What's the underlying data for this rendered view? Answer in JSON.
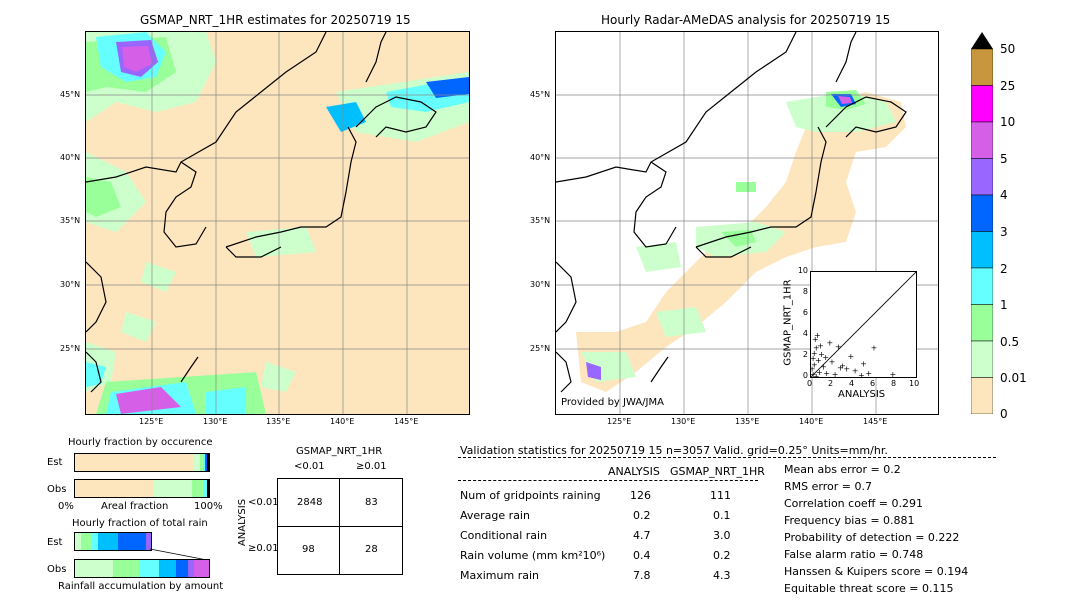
{
  "left_map": {
    "title": "GSMAP_NRT_1HR estimates for 20250719 15",
    "lat_labels": [
      "45°N",
      "40°N",
      "35°N",
      "30°N",
      "25°N"
    ],
    "lon_labels": [
      "125°E",
      "130°E",
      "135°E",
      "140°E",
      "145°E"
    ]
  },
  "right_map": {
    "title": "Hourly Radar-AMeDAS analysis for 20250719 15",
    "lat_labels": [
      "45°N",
      "40°N",
      "35°N",
      "30°N",
      "25°N"
    ],
    "lon_labels": [
      "125°E",
      "130°E",
      "135°E",
      "140°E",
      "145°E"
    ],
    "credit": "Provided by JWA/JMA"
  },
  "scatter": {
    "xlabel": "ANALYSIS",
    "ylabel": "GSMAP_NRT_1HR",
    "ticks": [
      "0",
      "2",
      "4",
      "6",
      "8",
      "10"
    ]
  },
  "colorbar": {
    "labels": [
      "50",
      "25",
      "10",
      "5",
      "4",
      "3",
      "2",
      "1",
      "0.5",
      "0.01",
      "0"
    ],
    "colors": [
      "#c8963c",
      "#ff00ff",
      "#d65fe8",
      "#9966ff",
      "#0066ff",
      "#00bfff",
      "#66ffff",
      "#99ff99",
      "#ccffcc",
      "#fde5bd"
    ]
  },
  "fraction_occurrence": {
    "title": "Hourly fraction by occurence",
    "est_label": "Est",
    "obs_label": "Obs",
    "axis_left": "0%",
    "axis_mid": "Areal fraction",
    "axis_right": "100%"
  },
  "fraction_total": {
    "title": "Hourly fraction of total rain",
    "est_label": "Est",
    "obs_label": "Obs",
    "axis_caption": "Rainfall accumulation by amount"
  },
  "contingency": {
    "title": "GSMAP_NRT_1HR",
    "col_lt": "<0.01",
    "col_ge": "≥0.01",
    "row_axis": "ANALYSIS",
    "row_lt": "<0.01",
    "row_ge": "≥0.01",
    "cells": [
      "2848",
      "83",
      "98",
      "28"
    ]
  },
  "validation": {
    "header": "Validation statistics for 20250719 15  n=3057 Valid. grid=0.25° Units=mm/hr.",
    "col_analysis": "ANALYSIS",
    "col_gsmap": "GSMAP_NRT_1HR",
    "rows": [
      {
        "label": "Num of gridpoints raining",
        "analysis": "126",
        "gsmap": "111"
      },
      {
        "label": "Average rain",
        "analysis": "0.2",
        "gsmap": "0.1"
      },
      {
        "label": "Conditional rain",
        "analysis": "4.7",
        "gsmap": "3.0"
      },
      {
        "label": "Rain volume (mm km²10⁶)",
        "analysis": "0.4",
        "gsmap": "0.2"
      },
      {
        "label": "Maximum rain",
        "analysis": "7.8",
        "gsmap": "4.3"
      }
    ],
    "scores": [
      "Mean abs error =    0.2",
      "RMS error =    0.7",
      "Correlation coeff =  0.291",
      "Frequency bias =  0.881",
      "Probability of detection =  0.222",
      "False alarm ratio =  0.748",
      "Hanssen & Kuipers score =  0.194",
      "Equitable threat score =  0.115"
    ]
  },
  "chart_data": [
    {
      "type": "table",
      "title": "GSMAP_NRT_1HR",
      "columns": [
        "<0.01",
        "≥0.01"
      ],
      "rows": [
        "<0.01",
        "≥0.01"
      ],
      "values": [
        [
          2848,
          83
        ],
        [
          98,
          28
        ]
      ]
    },
    {
      "type": "scatter",
      "xlabel": "ANALYSIS",
      "ylabel": "GSMAP_NRT_1HR",
      "xlim": [
        0,
        10
      ],
      "ylim": [
        0,
        10
      ],
      "points": [
        [
          0.2,
          0.3
        ],
        [
          0.3,
          1.2
        ],
        [
          0.5,
          2.8
        ],
        [
          0.4,
          3.6
        ],
        [
          0.6,
          4.0
        ],
        [
          0.2,
          1.8
        ],
        [
          0.8,
          0.5
        ],
        [
          1.0,
          2.2
        ],
        [
          1.2,
          1.0
        ],
        [
          1.5,
          0.4
        ],
        [
          2.0,
          1.5
        ],
        [
          2.3,
          0.3
        ],
        [
          2.6,
          2.9
        ],
        [
          3.0,
          1.1
        ],
        [
          3.4,
          0.8
        ],
        [
          3.8,
          2.0
        ],
        [
          4.2,
          0.6
        ],
        [
          4.8,
          0.2
        ],
        [
          5.0,
          1.3
        ],
        [
          5.5,
          0.4
        ],
        [
          6.0,
          2.8
        ],
        [
          7.8,
          0.3
        ],
        [
          0.1,
          0.8
        ],
        [
          0.7,
          1.6
        ],
        [
          1.8,
          3.3
        ],
        [
          0.9,
          3.0
        ],
        [
          0.3,
          2.3
        ],
        [
          1.4,
          1.9
        ],
        [
          2.8,
          0.9
        ],
        [
          0.5,
          0.1
        ]
      ]
    }
  ]
}
